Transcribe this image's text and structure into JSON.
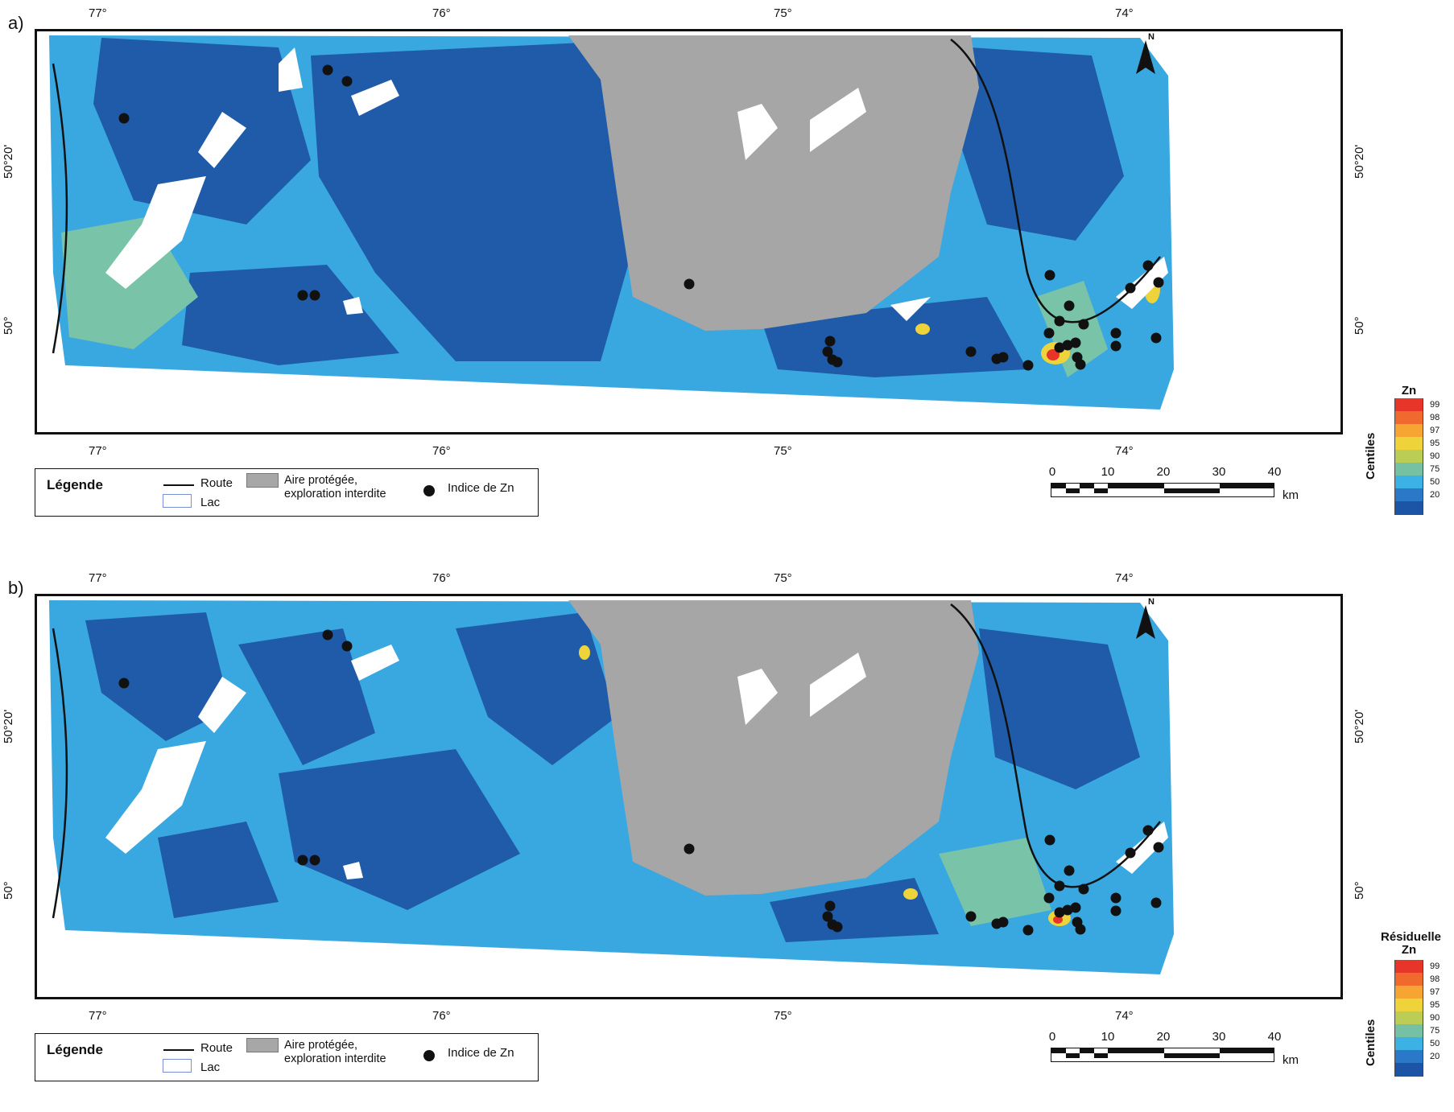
{
  "panels": [
    {
      "id": "a",
      "label": "a)",
      "colorbar_title": "Zn",
      "colorbar_axis": "Centiles"
    },
    {
      "id": "b",
      "label": "b)",
      "colorbar_title": "Résiduelle Zn",
      "colorbar_axis": "Centiles"
    }
  ],
  "longitude_ticks": [
    "77°",
    "76°",
    "75°",
    "74°"
  ],
  "latitude_ticks": [
    "50°20'",
    "50°"
  ],
  "north_arrow_label": "N",
  "legend": {
    "title": "Légende",
    "route": "Route",
    "lac": "Lac",
    "protected_area": "Aire protégée,\nexploration interdite",
    "zn_index": "Indice de Zn"
  },
  "scale_bar": {
    "labels": [
      "0",
      "10",
      "20",
      "30",
      "40"
    ],
    "unit": "km"
  },
  "colorbar_classes": [
    {
      "label": "99",
      "color": "#e8352a"
    },
    {
      "label": "98",
      "color": "#f06a2d"
    },
    {
      "label": "97",
      "color": "#f6a532"
    },
    {
      "label": "95",
      "color": "#eed43a"
    },
    {
      "label": "90",
      "color": "#bccd55"
    },
    {
      "label": "75",
      "color": "#76c0a4"
    },
    {
      "label": "50",
      "color": "#3bb1e4"
    },
    {
      "label": "20",
      "color": "#2b78c8"
    },
    {
      "label": "",
      "color": "#1c55a5"
    }
  ],
  "map_colors": {
    "low": "#1f5ba8",
    "mid": "#3aa8e0",
    "upper": "#79c3a9",
    "protected": "#a6a6a6",
    "lake": "#ffffff",
    "road": "#111111",
    "zn_index": "#111111"
  }
}
